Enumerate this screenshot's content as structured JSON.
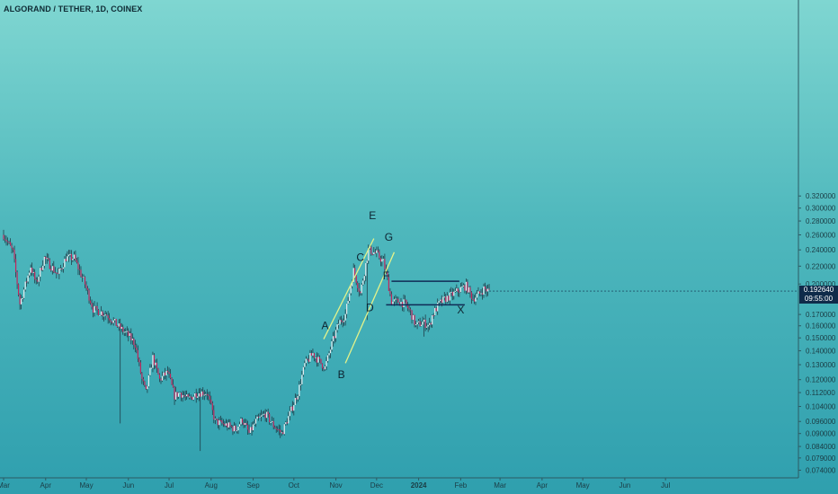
{
  "header": {
    "title": "ALGORAND / TETHER, 1D, COINEX"
  },
  "price_tag": {
    "price": "0.192640",
    "countdown": "09:55:00"
  },
  "colors": {
    "up": "#e7eef0",
    "down": "#c2255c",
    "shadow": "#1b2f3a",
    "channel": "#e4f28a",
    "range": "#0f2a55"
  },
  "chart_data": {
    "type": "candlestick",
    "title": "ALGORAND / TETHER, 1D, COINEX",
    "yscale": "log",
    "ylim": [
      0.0735,
      0.33
    ],
    "y_ticks": [
      0.32,
      0.3,
      0.28,
      0.26,
      0.24,
      0.22,
      0.2,
      0.17,
      0.16,
      0.15,
      0.14,
      0.13,
      0.12,
      0.112,
      0.104,
      0.096,
      0.09,
      0.084,
      0.079,
      0.074
    ],
    "y_tick_labels": [
      "0.320000",
      "0.300000",
      "0.280000",
      "0.260000",
      "0.240000",
      "0.220000",
      "0.200000",
      "0.170000",
      "0.160000",
      "0.150000",
      "0.140000",
      "0.130000",
      "0.120000",
      "0.112000",
      "0.104000",
      "0.096000",
      "0.090000",
      "0.084000",
      "0.079000",
      "0.074000"
    ],
    "x_labels": [
      "Mar",
      "Apr",
      "May",
      "Jun",
      "Jul",
      "Aug",
      "Sep",
      "Oct",
      "Nov",
      "Dec",
      "2024",
      "Feb",
      "Mar",
      "Apr",
      "May",
      "Jun",
      "Jul"
    ],
    "x_label_days": [
      0,
      31,
      61,
      92,
      122,
      153,
      184,
      214,
      245,
      275,
      306,
      337,
      366,
      397,
      427,
      458,
      488
    ],
    "last_day": 358,
    "path_days": [
      0,
      7,
      12,
      20,
      24,
      30,
      40,
      46,
      52,
      60,
      66,
      76,
      84,
      92,
      97,
      102,
      105,
      110,
      115,
      121,
      126,
      130,
      136,
      143,
      150,
      156,
      160,
      165,
      171,
      176,
      181,
      186,
      193,
      199,
      205,
      211,
      217,
      222,
      228,
      233,
      237,
      242,
      247,
      252,
      258,
      263,
      269,
      275,
      280,
      283,
      286,
      291,
      296,
      300,
      304,
      309,
      314,
      316,
      321,
      326,
      332,
      337,
      341,
      346,
      351,
      354,
      358
    ],
    "path_values": [
      0.26,
      0.237,
      0.18,
      0.22,
      0.2,
      0.23,
      0.21,
      0.23,
      0.23,
      0.2,
      0.175,
      0.17,
      0.16,
      0.152,
      0.145,
      0.12,
      0.112,
      0.135,
      0.12,
      0.125,
      0.11,
      0.112,
      0.108,
      0.112,
      0.112,
      0.096,
      0.095,
      0.094,
      0.092,
      0.097,
      0.09,
      0.096,
      0.1,
      0.094,
      0.09,
      0.1,
      0.112,
      0.13,
      0.138,
      0.132,
      0.128,
      0.145,
      0.162,
      0.17,
      0.215,
      0.19,
      0.24,
      0.235,
      0.225,
      0.205,
      0.182,
      0.182,
      0.18,
      0.172,
      0.16,
      0.163,
      0.16,
      0.169,
      0.18,
      0.185,
      0.19,
      0.195,
      0.198,
      0.185,
      0.19,
      0.195,
      0.1926
    ],
    "spikes": [
      {
        "day": 86,
        "low": 0.095
      },
      {
        "day": 145,
        "low": 0.082
      },
      {
        "day": 268,
        "low": 0.165
      },
      {
        "day": 310,
        "low": 0.151
      }
    ],
    "wave_labels": [
      {
        "text": "A",
        "day": 237,
        "value": 0.157
      },
      {
        "text": "B",
        "day": 249,
        "value": 0.121
      },
      {
        "text": "C",
        "day": 263,
        "value": 0.226
      },
      {
        "text": "D",
        "day": 270,
        "value": 0.173
      },
      {
        "text": "E",
        "day": 272,
        "value": 0.283
      },
      {
        "text": "F",
        "day": 282,
        "value": 0.205
      },
      {
        "text": "G",
        "day": 284,
        "value": 0.252
      },
      {
        "text": "X",
        "day": 337,
        "value": 0.171
      }
    ],
    "channel_lines": [
      {
        "from": {
          "day": 236,
          "value": 0.149
        },
        "to": {
          "day": 273,
          "value": 0.255
        }
      },
      {
        "from": {
          "day": 252,
          "value": 0.131
        },
        "to": {
          "day": 288,
          "value": 0.237
        }
      }
    ],
    "range_lines": [
      {
        "from": {
          "day": 286,
          "value": 0.203
        },
        "to": {
          "day": 336,
          "value": 0.203
        }
      },
      {
        "from": {
          "day": 282,
          "value": 0.179
        },
        "to": {
          "day": 340,
          "value": 0.179
        }
      }
    ]
  }
}
